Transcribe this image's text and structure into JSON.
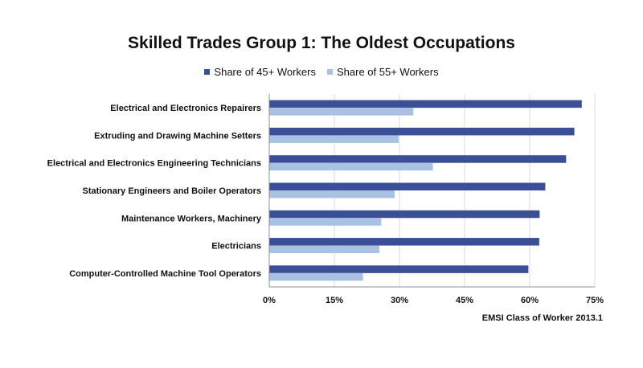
{
  "chart_data": {
    "type": "bar",
    "orientation": "horizontal",
    "title": "Skilled Trades Group 1: The Oldest Occupations",
    "categories": [
      "Electrical and Electronics Repairers",
      "Extruding and Drawing Machine Setters",
      "Electrical and Electronics Engineering Technicians",
      "Stationary Engineers and Boiler Operators",
      "Maintenance Workers, Machinery",
      "Electricians",
      "Computer-Controlled Machine Tool Operators"
    ],
    "series": [
      {
        "name": "Share of 45+ Workers",
        "color": "#3b4f96",
        "values": [
          72,
          70.3,
          68.4,
          63.6,
          62.3,
          62.2,
          59.7
        ]
      },
      {
        "name": "Share of 55+ Workers",
        "color": "#a9c1e2",
        "values": [
          33.2,
          29.8,
          37.7,
          28.9,
          25.8,
          25.4,
          21.6
        ]
      }
    ],
    "xlim": [
      0,
      75
    ],
    "xticks": [
      0,
      15,
      30,
      45,
      60,
      75
    ],
    "xtick_labels": [
      "0%",
      "15%",
      "30%",
      "45%",
      "60%",
      "75%"
    ],
    "grid": true,
    "legend_position": "top-center",
    "source": "EMSI Class of Worker 2013.1"
  }
}
